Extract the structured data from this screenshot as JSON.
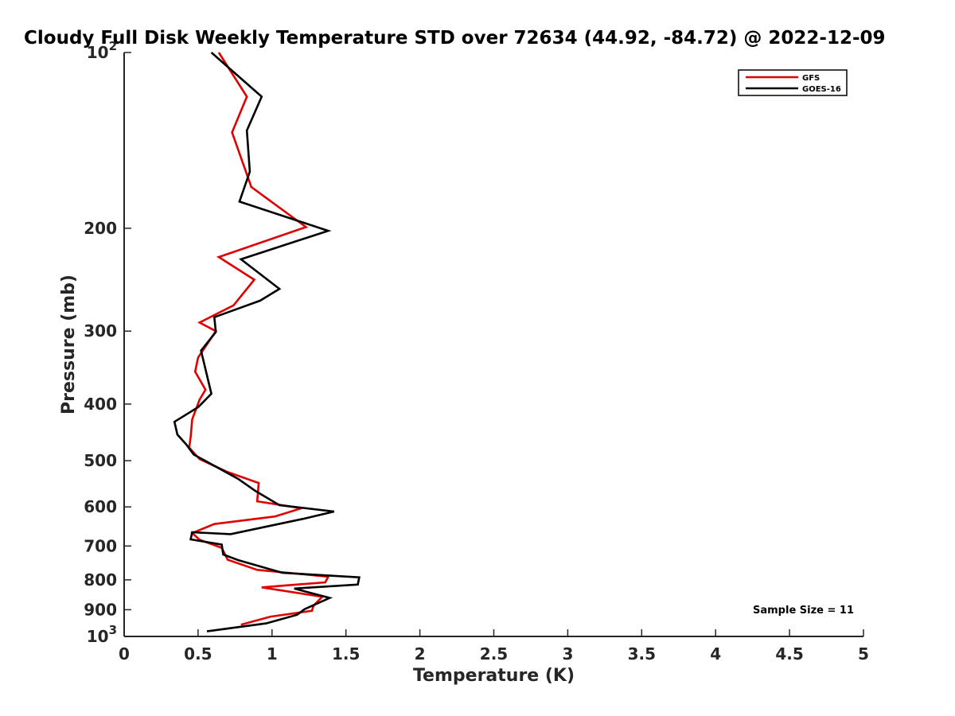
{
  "chart_data": {
    "type": "line",
    "title": "Cloudy Full Disk Weekly Temperature STD over 72634 (44.92, -84.72) @ 2022-12-09",
    "xlabel": "Temperature (K)",
    "ylabel": "Pressure (mb)",
    "xlim": [
      0,
      5
    ],
    "ylim": [
      100,
      1000
    ],
    "y_scale": "log",
    "y_reversed": true,
    "grid": false,
    "legend_position": "top-right",
    "x_ticks": [
      0,
      0.5,
      1,
      1.5,
      2,
      2.5,
      3,
      3.5,
      4,
      4.5,
      5
    ],
    "x_tick_labels": [
      "0",
      "0.5",
      "1",
      "1.5",
      "2",
      "2.5",
      "3",
      "3.5",
      "4",
      "4.5",
      "5"
    ],
    "y_ticks": [
      100,
      200,
      300,
      400,
      500,
      600,
      700,
      800,
      900,
      1000
    ],
    "y_tick_labels": [
      {
        "base": "10",
        "exp": "2"
      },
      {
        "base": "200"
      },
      {
        "base": "300"
      },
      {
        "base": "400"
      },
      {
        "base": "500"
      },
      {
        "base": "600"
      },
      {
        "base": "700"
      },
      {
        "base": "800"
      },
      {
        "base": "900"
      },
      {
        "base": "10",
        "exp": "3"
      }
    ],
    "series": [
      {
        "name": "GFS",
        "color": "#e00000",
        "points": [
          [
            0.64,
            100
          ],
          [
            0.83,
            119
          ],
          [
            0.73,
            137
          ],
          [
            0.86,
            170
          ],
          [
            1.23,
            199
          ],
          [
            0.64,
            224
          ],
          [
            0.88,
            245
          ],
          [
            0.74,
            271
          ],
          [
            0.51,
            290
          ],
          [
            0.62,
            300
          ],
          [
            0.5,
            333
          ],
          [
            0.48,
            352
          ],
          [
            0.55,
            378
          ],
          [
            0.51,
            393
          ],
          [
            0.46,
            425
          ],
          [
            0.45,
            455
          ],
          [
            0.44,
            475
          ],
          [
            0.51,
            497
          ],
          [
            0.7,
            523
          ],
          [
            0.91,
            546
          ],
          [
            0.9,
            587
          ],
          [
            1.2,
            603
          ],
          [
            1.02,
            623
          ],
          [
            0.61,
            642
          ],
          [
            0.46,
            665
          ],
          [
            0.51,
            683
          ],
          [
            0.66,
            705
          ],
          [
            0.7,
            739
          ],
          [
            0.9,
            769
          ],
          [
            1.38,
            790
          ],
          [
            1.36,
            808
          ],
          [
            0.93,
            824
          ],
          [
            1.34,
            855
          ],
          [
            1.28,
            886
          ],
          [
            1.27,
            904
          ],
          [
            0.99,
            925
          ],
          [
            0.79,
            955
          ]
        ]
      },
      {
        "name": "GOES-16",
        "color": "#000000",
        "points": [
          [
            0.59,
            100
          ],
          [
            0.93,
            119
          ],
          [
            0.83,
            136
          ],
          [
            0.85,
            160
          ],
          [
            0.78,
            180
          ],
          [
            1.38,
            202
          ],
          [
            0.79,
            226
          ],
          [
            1.05,
            254
          ],
          [
            0.92,
            266
          ],
          [
            0.61,
            284
          ],
          [
            0.62,
            301
          ],
          [
            0.52,
            324
          ],
          [
            0.59,
            384
          ],
          [
            0.5,
            405
          ],
          [
            0.34,
            429
          ],
          [
            0.36,
            451
          ],
          [
            0.42,
            469
          ],
          [
            0.47,
            488
          ],
          [
            0.77,
            537
          ],
          [
            0.89,
            564
          ],
          [
            1.05,
            596
          ],
          [
            1.42,
            611
          ],
          [
            1.21,
            629
          ],
          [
            0.72,
            668
          ],
          [
            0.46,
            663
          ],
          [
            0.45,
            682
          ],
          [
            0.66,
            696
          ],
          [
            0.67,
            724
          ],
          [
            0.77,
            740
          ],
          [
            1.07,
            778
          ],
          [
            1.59,
            792
          ],
          [
            1.58,
            815
          ],
          [
            1.15,
            828
          ],
          [
            1.39,
            859
          ],
          [
            1.22,
            898
          ],
          [
            1.17,
            918
          ],
          [
            0.96,
            950
          ],
          [
            0.56,
            980
          ]
        ]
      }
    ],
    "annotations": {
      "sample_size": "Sample Size = 11"
    }
  }
}
